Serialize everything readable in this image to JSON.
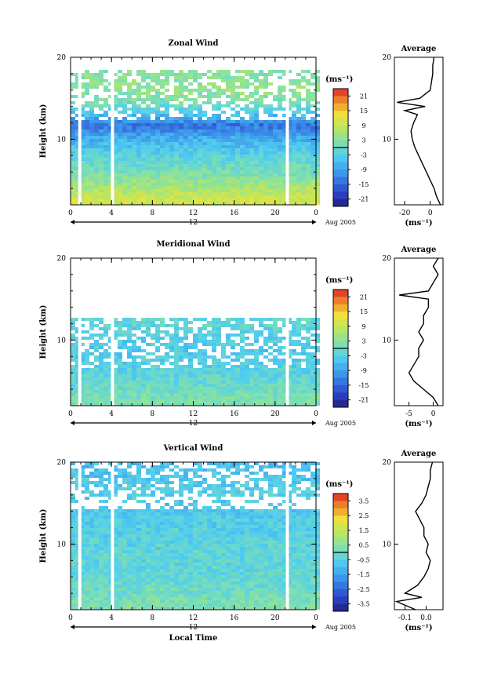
{
  "chart_data": [
    {
      "type": "heatmap",
      "title": "Zonal Wind",
      "ylabel": "Height (km)",
      "y_ticks": [
        "20",
        "10"
      ],
      "ylim": [
        2,
        20
      ],
      "x_ticks": [
        "0",
        "4",
        "8",
        "12",
        "16",
        "20",
        "0"
      ],
      "xlim": [
        0,
        24
      ],
      "date_ticks": [
        "12"
      ],
      "date_label": "Aug 2005",
      "colorbar": {
        "unit": "(ms⁻¹)",
        "ticks": [
          "21",
          "15",
          "9",
          "3",
          "-3",
          "-9",
          "-15",
          "-21"
        ],
        "range": [
          -24,
          24
        ]
      },
      "field": {
        "rows_heights": [
          2.5,
          4,
          5.5,
          7,
          8.5,
          10,
          11.5,
          13,
          14.5,
          16,
          17.5
        ],
        "row_values": [
          10,
          6,
          2,
          -1,
          -4,
          -8,
          -14,
          -4,
          2,
          4,
          3
        ],
        "data_top_km": 18.3,
        "gaps_hours": [
          0.9,
          4.1,
          21.2
        ]
      },
      "profile": {
        "title": "Average",
        "x_ticks": [
          "-20",
          "0"
        ],
        "xlim": [
          -28,
          10
        ],
        "xlabel": "(ms⁻¹)",
        "y_ticks": [
          "20",
          "10"
        ],
        "heights": [
          2,
          3,
          4,
          5,
          6,
          7,
          8,
          9,
          10,
          11,
          12,
          13,
          13.5,
          14,
          14.5,
          15,
          16,
          17,
          18,
          19,
          20
        ],
        "values": [
          8,
          5,
          3,
          0,
          -3,
          -6,
          -9,
          -12,
          -14,
          -15,
          -13,
          -10,
          -20,
          -4,
          -26,
          -8,
          0,
          1,
          2,
          2,
          3
        ]
      }
    },
    {
      "type": "heatmap",
      "title": "Meridional Wind",
      "ylabel": "Height (km)",
      "y_ticks": [
        "20",
        "10"
      ],
      "ylim": [
        2,
        20
      ],
      "x_ticks": [
        "0",
        "4",
        "8",
        "12",
        "16",
        "20",
        "0"
      ],
      "xlim": [
        0,
        24
      ],
      "date_ticks": [
        "12"
      ],
      "date_label": "Aug 2005",
      "colorbar": {
        "unit": "(ms⁻¹)",
        "ticks": [
          "21",
          "15",
          "9",
          "3",
          "-3",
          "-9",
          "-15",
          "-21"
        ],
        "range": [
          -24,
          24
        ]
      },
      "field": {
        "rows_heights": [
          2.5,
          4,
          5.5,
          7,
          8.5,
          10,
          11.5,
          13,
          14.5,
          16,
          17.5
        ],
        "row_values": [
          2,
          0,
          -2,
          -3,
          -4,
          -3,
          -2,
          -1,
          0,
          1,
          0
        ],
        "data_top_km": 12.5,
        "gaps_hours": [
          0.9,
          4.1,
          21.2
        ]
      },
      "profile": {
        "title": "Average",
        "x_ticks": [
          "-5",
          "0"
        ],
        "xlim": [
          -8,
          2
        ],
        "xlabel": "(ms⁻¹)",
        "y_ticks": [
          "20",
          "10"
        ],
        "heights": [
          2,
          3,
          4,
          5,
          6,
          7,
          8,
          9,
          10,
          11,
          12,
          13,
          14,
          15,
          15.5,
          16,
          17,
          18,
          19,
          20
        ],
        "values": [
          1,
          0,
          -2,
          -4,
          -5,
          -4,
          -3,
          -3,
          -2,
          -3,
          -2,
          -2,
          -1,
          -1,
          -7,
          -1,
          0,
          1,
          0,
          1
        ]
      }
    },
    {
      "type": "heatmap",
      "title": "Vertical Wind",
      "ylabel": "Height (km)",
      "y_ticks": [
        "20",
        "10"
      ],
      "ylim": [
        2,
        20
      ],
      "x_ticks": [
        "0",
        "4",
        "8",
        "12",
        "16",
        "20",
        "0"
      ],
      "xlim": [
        0,
        24
      ],
      "date_ticks": [
        "12"
      ],
      "date_label": "Aug 2005",
      "xlabel": "Local Time",
      "colorbar": {
        "unit": "(ms⁻¹)",
        "ticks": [
          "3.5",
          "2.5",
          "1.5",
          "0.5",
          "-0.5",
          "-1.5",
          "-2.5",
          "-3.5"
        ],
        "range": [
          -4,
          4
        ]
      },
      "field": {
        "rows_heights": [
          2.5,
          4,
          5.5,
          7,
          8.5,
          10,
          11.5,
          13,
          14.5,
          16,
          17.5,
          19
        ],
        "row_values": [
          0.3,
          0,
          -0.2,
          -0.3,
          -0.3,
          -0.4,
          -0.5,
          -0.6,
          -0.8,
          -0.5,
          -0.7,
          -0.9
        ],
        "data_top_km": 20,
        "gaps_hours": [
          0.9,
          4.1,
          21.2
        ]
      },
      "profile": {
        "title": "Average",
        "x_ticks": [
          "-0.1",
          "0.0"
        ],
        "xlim": [
          -0.15,
          0.08
        ],
        "xlabel": "(ms⁻¹)",
        "y_ticks": [
          "20",
          "10"
        ],
        "heights": [
          2,
          3,
          3.5,
          4,
          5,
          6,
          7,
          8,
          9,
          10,
          11,
          12,
          13,
          14,
          15,
          16,
          17,
          18,
          19,
          20
        ],
        "values": [
          -0.05,
          -0.14,
          -0.02,
          -0.1,
          -0.04,
          -0.01,
          0.01,
          0.02,
          0.0,
          0.01,
          -0.01,
          -0.01,
          -0.03,
          -0.05,
          -0.02,
          0.0,
          0.01,
          0.02,
          0.02,
          0.03
        ]
      }
    }
  ]
}
